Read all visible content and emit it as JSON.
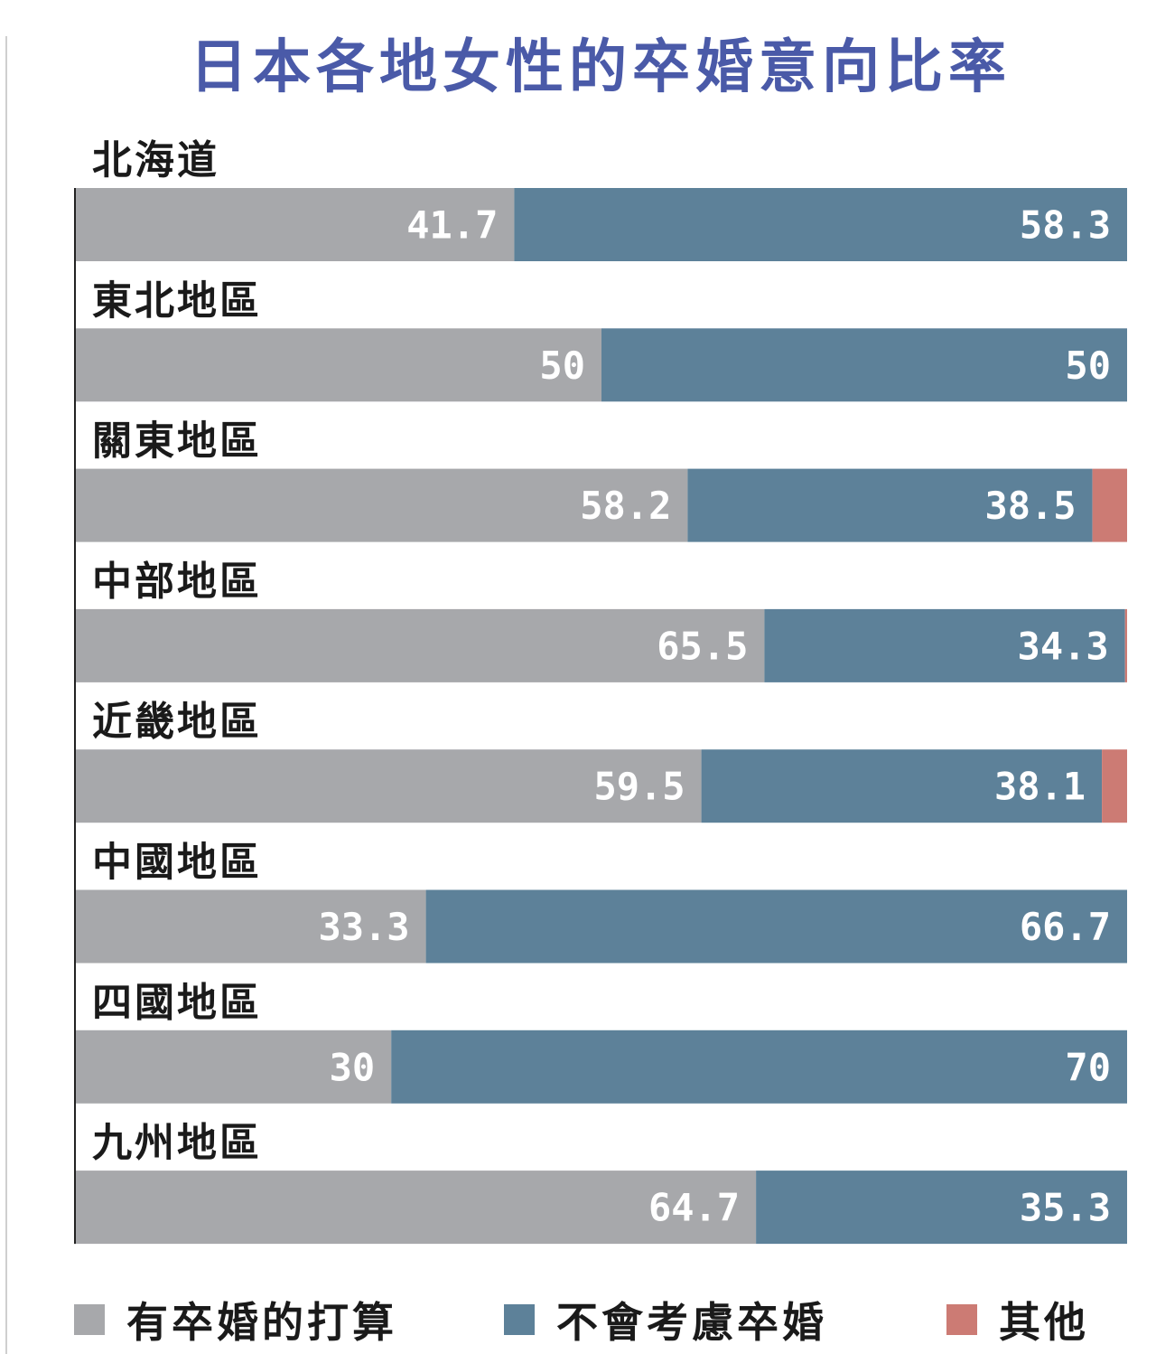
{
  "chart_data": {
    "type": "bar",
    "orientation": "horizontal",
    "stacked": true,
    "title": "日本各地女性的卒婚意向比率",
    "categories": [
      "北海道",
      "東北地區",
      "關東地區",
      "中部地區",
      "近畿地區",
      "中國地區",
      "四國地區",
      "九州地區"
    ],
    "series": [
      {
        "name": "有卒婚的打算",
        "color": "#a7a8ab",
        "values": [
          41.7,
          50,
          58.2,
          65.5,
          59.5,
          33.3,
          30,
          64.7
        ]
      },
      {
        "name": "不會考慮卒婚",
        "color": "#5d8199",
        "values": [
          58.3,
          50,
          38.5,
          34.3,
          38.1,
          66.7,
          70,
          35.3
        ]
      },
      {
        "name": "其他",
        "color": "#cc7b74",
        "values": [
          0,
          0,
          3.3,
          0.2,
          2.4,
          0,
          0,
          0
        ]
      }
    ],
    "value_labels": [
      [
        "41.7",
        "58.3"
      ],
      [
        "50",
        "50"
      ],
      [
        "58.2",
        "38.5"
      ],
      [
        "65.5",
        "34.3"
      ],
      [
        "59.5",
        "38.1"
      ],
      [
        "33.3",
        "66.7"
      ],
      [
        "30",
        "70"
      ],
      [
        "64.7",
        "35.3"
      ]
    ],
    "xlim": [
      0,
      100
    ],
    "grid": false,
    "legend_position": "bottom",
    "title_color": "#4a5aa8"
  }
}
